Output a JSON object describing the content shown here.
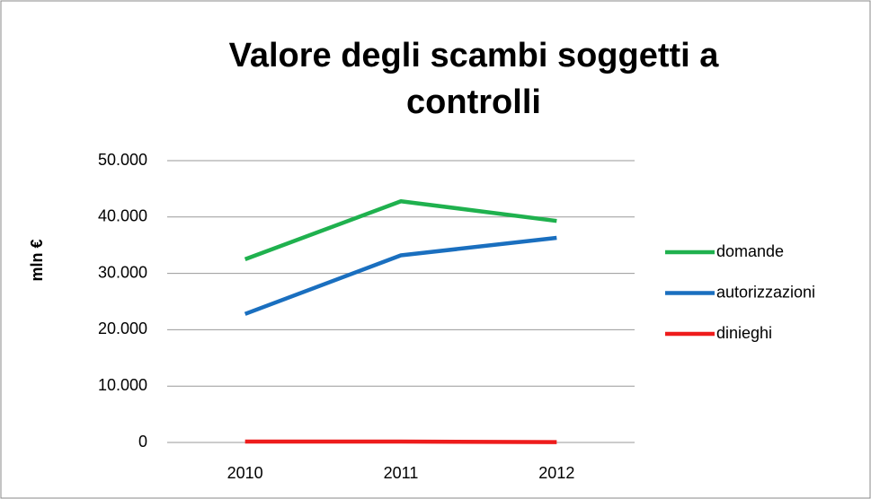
{
  "chart_data": {
    "type": "line",
    "title": "Valore degli scambi soggetti a controlli",
    "ylabel": "mln €",
    "categories": [
      "2010",
      "2011",
      "2012"
    ],
    "series": [
      {
        "name": "domande",
        "color": "#1fb14e",
        "values": [
          32500,
          42800,
          39300
        ]
      },
      {
        "name": "autorizzazioni",
        "color": "#1a6fbf",
        "values": [
          22800,
          33200,
          36300
        ]
      },
      {
        "name": "dinieghi",
        "color": "#ee1c1c",
        "values": [
          150,
          150,
          50
        ]
      }
    ],
    "ylim": [
      0,
      50000
    ],
    "yticks": [
      0,
      {
        "value": 10000,
        "label": "10.000"
      },
      {
        "value": 20000,
        "label": "20.000"
      },
      {
        "value": 30000,
        "label": "30.000"
      },
      {
        "value": 40000,
        "label": "40.000"
      },
      {
        "value": 50000,
        "label": "50.000"
      }
    ],
    "grid": true,
    "legend": "right"
  }
}
